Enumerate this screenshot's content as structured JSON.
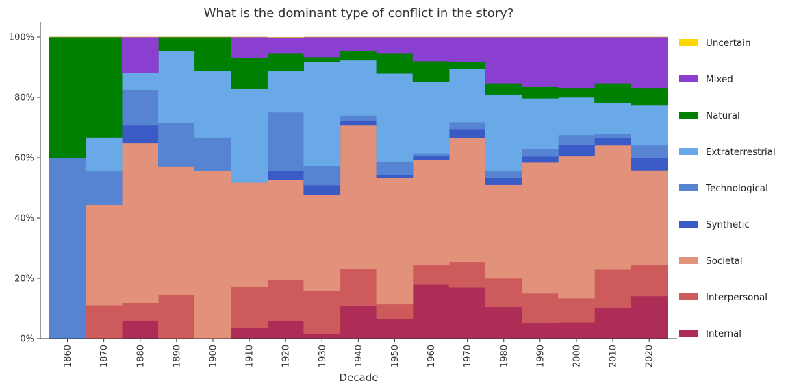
{
  "chart_data": {
    "type": "area",
    "subtype": "stacked-100-percent-step",
    "title": "What is the dominant type of conflict in the story?",
    "xlabel": "Decade",
    "ylabel": "",
    "ylim": [
      0,
      100
    ],
    "yticks": [
      "0%",
      "20%",
      "40%",
      "60%",
      "80%",
      "100%"
    ],
    "ytick_values": [
      0,
      20,
      40,
      60,
      80,
      100
    ],
    "categories": [
      "1860",
      "1870",
      "1880",
      "1890",
      "1900",
      "1910",
      "1920",
      "1930",
      "1940",
      "1950",
      "1960",
      "1970",
      "1980",
      "1990",
      "2000",
      "2010",
      "2020"
    ],
    "legend_position": "right",
    "grid": false,
    "series": [
      {
        "name": "Internal",
        "color": "#ad2d57",
        "values": [
          0,
          0,
          6.0,
          0,
          0,
          3.5,
          5.8,
          1.6,
          10.8,
          6.6,
          17.9,
          17.0,
          10.5,
          5.3,
          5.4,
          10.1,
          14.1
        ]
      },
      {
        "name": "Interpersonal",
        "color": "#cd5b5b",
        "values": [
          0,
          11.1,
          5.9,
          14.4,
          0,
          13.8,
          13.7,
          14.3,
          12.4,
          4.8,
          6.6,
          8.5,
          9.5,
          9.7,
          8.0,
          12.8,
          10.4
        ]
      },
      {
        "name": "Societal",
        "color": "#e2927a",
        "values": [
          0,
          33.3,
          52.9,
          42.8,
          55.6,
          34.5,
          33.3,
          31.8,
          47.5,
          42.0,
          34.9,
          41.0,
          31.0,
          43.4,
          47.1,
          41.2,
          31.3
        ]
      },
      {
        "name": "Synthetic",
        "color": "#3a5ac6",
        "values": [
          0,
          0,
          5.9,
          0,
          0,
          0,
          2.8,
          3.2,
          1.6,
          0.8,
          1.1,
          3.0,
          2.3,
          2.0,
          3.9,
          2.3,
          4.2
        ]
      },
      {
        "name": "Technological",
        "color": "#5683d2",
        "values": [
          60,
          11.1,
          11.7,
          14.3,
          11.1,
          0,
          19.4,
          6.4,
          1.7,
          4.4,
          1.0,
          2.3,
          2.2,
          2.5,
          3.1,
          1.5,
          4.1
        ]
      },
      {
        "name": "Extraterrestrial",
        "color": "#6aa9e8",
        "values": [
          0,
          11.2,
          5.7,
          23.8,
          22.2,
          31.0,
          13.9,
          34.6,
          18.3,
          29.3,
          23.8,
          17.7,
          25.5,
          16.8,
          12.5,
          10.3,
          13.4
        ]
      },
      {
        "name": "Natural",
        "color": "#008000",
        "values": [
          40,
          33.3,
          0,
          4.7,
          11.1,
          10.3,
          5.6,
          1.5,
          3.2,
          6.6,
          6.7,
          2.2,
          3.7,
          3.8,
          3.0,
          6.5,
          5.5
        ]
      },
      {
        "name": "Mixed",
        "color": "#8a3fd1",
        "values": [
          0,
          0,
          11.9,
          0,
          0,
          6.9,
          5.4,
          6.6,
          4.5,
          5.5,
          8.0,
          8.3,
          15.3,
          16.5,
          17.0,
          15.3,
          17.0
        ]
      },
      {
        "name": "Uncertain",
        "color": "#ffd700",
        "values": [
          0,
          0,
          0,
          0,
          0,
          0,
          0,
          0,
          0,
          0,
          0,
          0,
          0,
          0,
          0,
          0,
          0
        ]
      }
    ]
  }
}
